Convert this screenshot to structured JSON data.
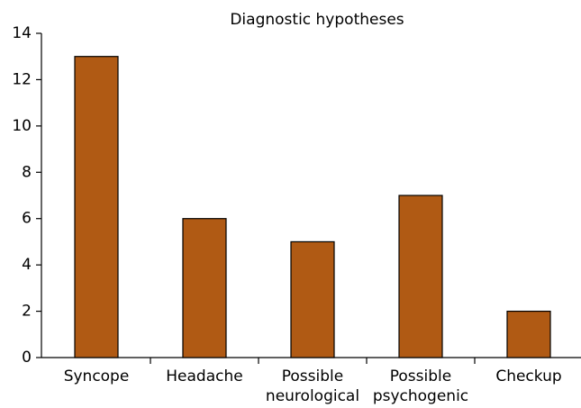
{
  "chart_data": {
    "type": "bar",
    "title": "Diagnostic hypotheses",
    "categories": [
      "Syncope",
      "Headache",
      "Possible neurological",
      "Possible psychogenic",
      "Checkup"
    ],
    "values": [
      13,
      6,
      5,
      7,
      2
    ],
    "color": "#b05a14",
    "ylim": [
      0,
      14
    ],
    "yticks": [
      0,
      2,
      4,
      6,
      8,
      10,
      12,
      14
    ],
    "grid": false
  }
}
